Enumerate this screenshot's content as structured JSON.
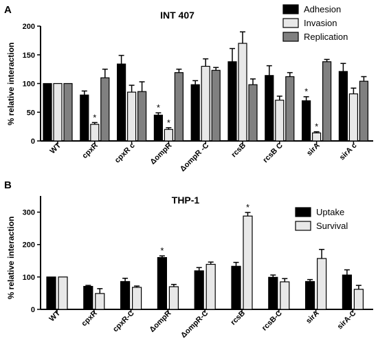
{
  "chart_data": [
    {
      "panel": "A",
      "type": "bar",
      "title": "INT 407",
      "ylabel": "% relative interaction",
      "xlabel": "",
      "ylim": [
        0,
        200
      ],
      "yticks": [
        0,
        50,
        100,
        150,
        200
      ],
      "legend_position": "top-right",
      "categories": [
        "WT",
        "cpxR",
        "cpxR c",
        "ΔompR",
        "ΔompR -C",
        "rcsB",
        "rcsB C",
        "sirA",
        "sirA c"
      ],
      "series": [
        {
          "name": "Adhesion",
          "color": "#000000",
          "values": [
            100,
            80,
            134,
            45,
            98,
            138,
            114,
            70,
            121
          ],
          "errors": [
            0,
            7,
            15,
            4,
            7,
            23,
            17,
            7,
            14
          ]
        },
        {
          "name": "Invasion",
          "color": "#e8e8e8",
          "values": [
            100,
            29,
            85,
            20,
            130,
            170,
            71,
            14,
            82
          ],
          "errors": [
            0,
            3,
            12,
            3,
            13,
            20,
            7,
            2,
            10
          ]
        },
        {
          "name": "Replication",
          "color": "#808080",
          "values": [
            100,
            110,
            86,
            119,
            123,
            98,
            112,
            138,
            104
          ],
          "errors": [
            0,
            15,
            17,
            6,
            5,
            10,
            7,
            4,
            8
          ]
        }
      ],
      "significance": [
        {
          "category": "cpxR",
          "series": "Invasion",
          "label": "*"
        },
        {
          "category": "ΔompR",
          "series": "Adhesion",
          "label": "*"
        },
        {
          "category": "ΔompR",
          "series": "Invasion",
          "label": "*"
        },
        {
          "category": "sirA",
          "series": "Adhesion",
          "label": "*"
        },
        {
          "category": "sirA",
          "series": "Invasion",
          "label": "*"
        }
      ]
    },
    {
      "panel": "B",
      "type": "bar",
      "title": "THP-1",
      "ylabel": "% relative interaction",
      "xlabel": "",
      "ylim": [
        0,
        350
      ],
      "yticks": [
        0,
        100,
        200,
        300
      ],
      "legend_position": "top-right",
      "categories": [
        "WT",
        "cpxR",
        "cpxR-C",
        "ΔompR",
        "ΔompR-C",
        "rcsB",
        "rcsB-C",
        "sirA",
        "sirA-C"
      ],
      "series": [
        {
          "name": "Uptake",
          "color": "#000000",
          "values": [
            100,
            71,
            86,
            160,
            119,
            133,
            99,
            86,
            106
          ],
          "errors": [
            0,
            3,
            10,
            5,
            10,
            12,
            7,
            6,
            16
          ]
        },
        {
          "name": "Survival",
          "color": "#e8e8e8",
          "values": [
            100,
            49,
            68,
            70,
            139,
            288,
            85,
            157,
            62
          ],
          "errors": [
            0,
            15,
            4,
            7,
            7,
            11,
            10,
            28,
            12
          ]
        }
      ],
      "significance": [
        {
          "category": "ΔompR",
          "series": "Uptake",
          "label": "*"
        },
        {
          "category": "rcsB",
          "series": "Survival",
          "label": "*"
        }
      ]
    }
  ]
}
